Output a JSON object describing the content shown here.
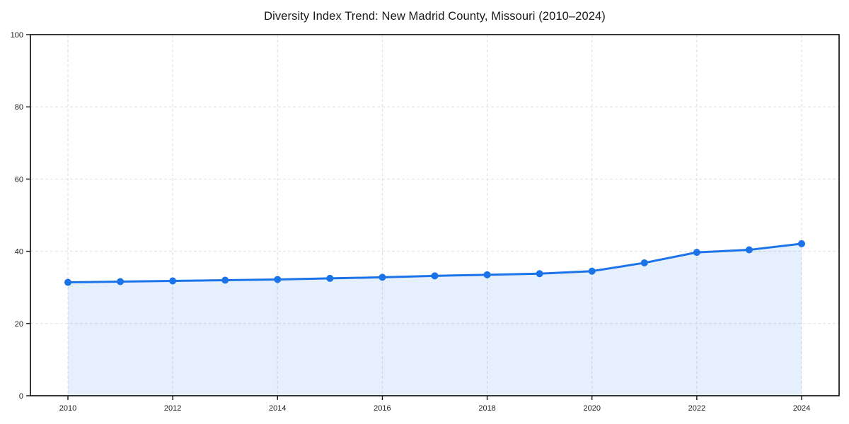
{
  "chart_data": {
    "type": "area",
    "title": "Diversity Index Trend: New Madrid County, Missouri (2010–2024)",
    "series_name": "Diversity Index",
    "x": [
      2010,
      2011,
      2012,
      2013,
      2014,
      2015,
      2016,
      2017,
      2018,
      2019,
      2020,
      2021,
      2022,
      2023,
      2024
    ],
    "values": [
      31.4,
      31.6,
      31.8,
      32.0,
      32.2,
      32.5,
      32.8,
      33.2,
      33.5,
      33.8,
      34.5,
      36.8,
      39.7,
      40.4,
      42.1
    ],
    "xlabel": "",
    "ylabel": "",
    "xticks": [
      2010,
      2012,
      2014,
      2016,
      2018,
      2020,
      2022,
      2024
    ],
    "yticks": [
      0,
      20,
      40,
      60,
      80,
      100
    ],
    "ylim": [
      0,
      100
    ],
    "grid": true,
    "grid_style": "dashed",
    "legend_position": "none",
    "style": {
      "line_color": "#1a73e8",
      "marker_color": "#1a73e8",
      "fill_color": "#1a73e8",
      "fill_opacity": 0.11,
      "grid_color": "#dedede",
      "spine_color": "#141414",
      "tick_text_color": "#1a1a1a",
      "background_color": "#ffffff"
    }
  }
}
